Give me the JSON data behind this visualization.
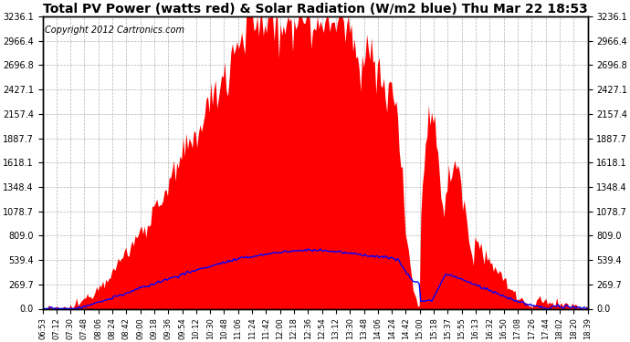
{
  "title": "Total PV Power (watts red) & Solar Radiation (W/m2 blue) Thu Mar 22 18:53",
  "copyright": "Copyright 2012 Cartronics.com",
  "yticks": [
    0.0,
    269.7,
    539.4,
    809.0,
    1078.7,
    1348.4,
    1618.1,
    1887.7,
    2157.4,
    2427.1,
    2696.8,
    2966.4,
    3236.1
  ],
  "ymax": 3236.1,
  "ymin": 0.0,
  "fill_color": "red",
  "line_color": "blue",
  "bg_color": "white",
  "grid_color": "#aaaaaa",
  "title_fontsize": 10,
  "copyright_fontsize": 7,
  "xtick_labels": [
    "06:53",
    "07:12",
    "07:30",
    "07:48",
    "08:06",
    "08:24",
    "08:42",
    "09:00",
    "09:18",
    "09:36",
    "09:54",
    "10:12",
    "10:30",
    "10:48",
    "11:06",
    "11:24",
    "11:42",
    "12:00",
    "12:18",
    "12:36",
    "12:54",
    "13:12",
    "13:30",
    "13:48",
    "14:06",
    "14:24",
    "14:42",
    "15:00",
    "15:18",
    "15:37",
    "15:55",
    "16:13",
    "16:32",
    "16:50",
    "17:08",
    "17:26",
    "17:44",
    "18:02",
    "18:20",
    "18:39"
  ]
}
